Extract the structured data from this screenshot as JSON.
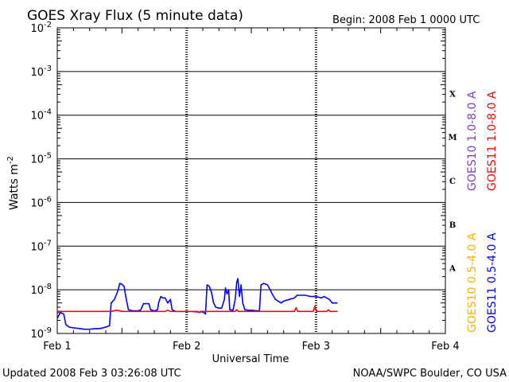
{
  "chart_data": {
    "type": "line",
    "title": "GOES Xray Flux (5 minute data)",
    "begin_label": "Begin:  2008 Feb 1 0000 UTC",
    "xlabel": "Universal Time",
    "ylabel_base": "Watts m",
    "ylabel_exp": "-2",
    "y_scale": "log",
    "ylim": [
      1e-09,
      0.01
    ],
    "xlim": [
      0,
      72
    ],
    "x_unit": "hours since 2008 Feb 1 0000 UTC",
    "x_ticks": [
      {
        "x": 0,
        "label": "Feb 1"
      },
      {
        "x": 24,
        "label": "Feb 2"
      },
      {
        "x": 48,
        "label": "Feb 3"
      },
      {
        "x": 72,
        "label": "Feb 4"
      }
    ],
    "y_ticks": [
      {
        "exp": -2,
        "base": "10",
        "sup": "-2"
      },
      {
        "exp": -3,
        "base": "10",
        "sup": "-3"
      },
      {
        "exp": -4,
        "base": "10",
        "sup": "-4"
      },
      {
        "exp": -5,
        "base": "10",
        "sup": "-5"
      },
      {
        "exp": -6,
        "base": "10",
        "sup": "-6"
      },
      {
        "exp": -7,
        "base": "10",
        "sup": "-7"
      },
      {
        "exp": -8,
        "base": "10",
        "sup": "-8"
      },
      {
        "exp": -9,
        "base": "10",
        "sup": "-9"
      }
    ],
    "flare_classes": [
      {
        "label": "X",
        "exp": -3.5
      },
      {
        "label": "M",
        "exp": -4.5
      },
      {
        "label": "C",
        "exp": -5.5
      },
      {
        "label": "B",
        "exp": -6.5
      },
      {
        "label": "A",
        "exp": -7.5
      }
    ],
    "legend": [
      {
        "text": "GOES10 1.0-8.0 A",
        "color": "#7f3fbf"
      },
      {
        "text": "GOES11 1.0-8.0 A",
        "color": "#ff0000"
      },
      {
        "text": "GOES10 0.5-4.0 A",
        "color": "#ffb000"
      },
      {
        "text": "GOES11 0.5-4.0 A",
        "color": "#0000ff"
      }
    ],
    "series": [
      {
        "name": "GOES11 0.5-4.0 A",
        "color": "#0000ff",
        "points": [
          [
            0.0,
            2.2e-09
          ],
          [
            0.3,
            2.6e-09
          ],
          [
            0.6,
            3e-09
          ],
          [
            1.2,
            2.8e-09
          ],
          [
            1.6,
            1.6e-09
          ],
          [
            2.2,
            1.4e-09
          ],
          [
            3.0,
            1.35e-09
          ],
          [
            4.0,
            1.3e-09
          ],
          [
            5.0,
            1.25e-09
          ],
          [
            6.0,
            1.25e-09
          ],
          [
            7.0,
            1.28e-09
          ],
          [
            8.0,
            1.3e-09
          ],
          [
            9.0,
            1.4e-09
          ],
          [
            9.7,
            1.5e-09
          ],
          [
            10.0,
            5e-09
          ],
          [
            10.6,
            6e-09
          ],
          [
            11.0,
            8e-09
          ],
          [
            11.3,
            1e-08
          ],
          [
            11.6,
            1.4e-08
          ],
          [
            12.0,
            1.35e-08
          ],
          [
            12.4,
            1.2e-08
          ],
          [
            12.8,
            6e-09
          ],
          [
            13.2,
            3.5e-09
          ],
          [
            14.0,
            3.3e-09
          ],
          [
            15.0,
            3.3e-09
          ],
          [
            15.5,
            3.5e-09
          ],
          [
            16.0,
            4.8e-09
          ],
          [
            17.0,
            4.8e-09
          ],
          [
            17.3,
            3.5e-09
          ],
          [
            18.0,
            3.3e-09
          ],
          [
            18.6,
            3.5e-09
          ],
          [
            18.8,
            5e-09
          ],
          [
            19.2,
            7e-09
          ],
          [
            19.6,
            6.5e-09
          ],
          [
            20.0,
            6.5e-09
          ],
          [
            20.5,
            5e-09
          ],
          [
            21.0,
            6e-09
          ],
          [
            21.3,
            3.5e-09
          ],
          [
            22.0,
            3.2e-09
          ],
          [
            23.0,
            3.2e-09
          ],
          [
            24.0,
            3.2e-09
          ],
          [
            25.0,
            3.2e-09
          ],
          [
            26.0,
            3.1e-09
          ],
          [
            27.0,
            3.1e-09
          ],
          [
            27.5,
            2.8e-09
          ],
          [
            27.8,
            1.3e-08
          ],
          [
            28.2,
            1.2e-08
          ],
          [
            28.6,
            9e-09
          ],
          [
            29.0,
            5e-09
          ],
          [
            29.4,
            4e-09
          ],
          [
            30.0,
            3.8e-09
          ],
          [
            30.5,
            3.8e-09
          ],
          [
            31.0,
            6e-09
          ],
          [
            31.2,
            1.1e-08
          ],
          [
            31.5,
            8e-09
          ],
          [
            31.8,
            1e-08
          ],
          [
            32.0,
            3.5e-09
          ],
          [
            32.6,
            3.4e-09
          ],
          [
            33.0,
            6e-09
          ],
          [
            33.3,
            1.5e-08
          ],
          [
            33.5,
            1.8e-08
          ],
          [
            33.8,
            7e-09
          ],
          [
            34.1,
            1.3e-08
          ],
          [
            34.4,
            5e-09
          ],
          [
            34.8,
            3.5e-09
          ],
          [
            35.5,
            3.4e-09
          ],
          [
            36.0,
            3.4e-09
          ],
          [
            37.0,
            3.3e-09
          ],
          [
            37.5,
            3.3e-09
          ],
          [
            37.8,
            1.3e-08
          ],
          [
            38.3,
            1.4e-08
          ],
          [
            39.0,
            1.3e-08
          ],
          [
            39.5,
            1e-08
          ],
          [
            40.0,
            7.5e-09
          ],
          [
            40.5,
            6e-09
          ],
          [
            41.0,
            5.5e-09
          ],
          [
            41.5,
            5e-09
          ],
          [
            42.0,
            5.5e-09
          ],
          [
            43.0,
            6e-09
          ],
          [
            44.0,
            6.5e-09
          ],
          [
            44.5,
            7.5e-09
          ],
          [
            45.0,
            7.5e-09
          ],
          [
            46.0,
            7.5e-09
          ],
          [
            47.0,
            7e-09
          ],
          [
            48.0,
            7e-09
          ],
          [
            49.0,
            6.5e-09
          ],
          [
            49.5,
            7e-09
          ],
          [
            50.0,
            6.5e-09
          ],
          [
            50.5,
            6e-09
          ],
          [
            51.0,
            5e-09
          ],
          [
            51.5,
            5e-09
          ],
          [
            52.0,
            5e-09
          ]
        ]
      },
      {
        "name": "GOES11 1.0-8.0 A",
        "color": "#ff0000",
        "points": [
          [
            0.0,
            3.2e-09
          ],
          [
            10.0,
            3.2e-09
          ],
          [
            11.0,
            3.4e-09
          ],
          [
            12.0,
            3.2e-09
          ],
          [
            20.0,
            3.2e-09
          ],
          [
            20.5,
            3.4e-09
          ],
          [
            21.0,
            3.2e-09
          ],
          [
            26.0,
            3.2e-09
          ],
          [
            26.3,
            3e-09
          ],
          [
            26.6,
            3.2e-09
          ],
          [
            33.0,
            3.2e-09
          ],
          [
            33.3,
            3.5e-09
          ],
          [
            33.6,
            3.2e-09
          ],
          [
            44.0,
            3.2e-09
          ],
          [
            44.3,
            3.9e-09
          ],
          [
            44.6,
            3.2e-09
          ],
          [
            47.5,
            3.2e-09
          ],
          [
            47.8,
            4.2e-09
          ],
          [
            48.1,
            3.2e-09
          ],
          [
            50.0,
            3.2e-09
          ],
          [
            50.3,
            3.5e-09
          ],
          [
            50.6,
            3.2e-09
          ],
          [
            52.0,
            3.2e-09
          ]
        ]
      }
    ]
  },
  "footer": {
    "updated": "Updated 2008 Feb  3 03:26:08 UTC",
    "credit": "NOAA/SWPC Boulder, CO USA"
  }
}
